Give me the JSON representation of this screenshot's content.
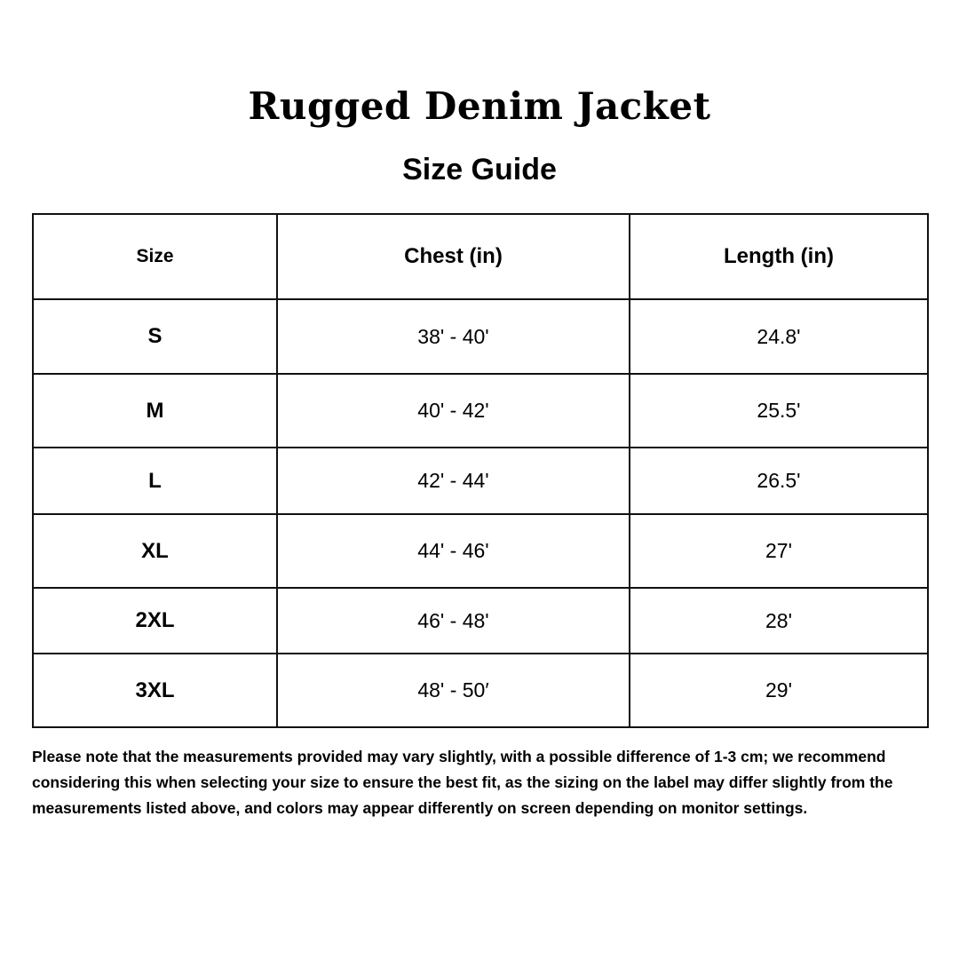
{
  "header": {
    "title": "Rugged Denim Jacket",
    "subtitle": "Size Guide"
  },
  "table": {
    "columns": [
      "Size",
      "Chest (in)",
      "Length (in)"
    ],
    "rows": [
      {
        "size": "S",
        "chest": "38' - 40'",
        "length": "24.8'"
      },
      {
        "size": "M",
        "chest": "40' - 42'",
        "length": "25.5'"
      },
      {
        "size": "L",
        "chest": "42' - 44'",
        "length": "26.5'"
      },
      {
        "size": "XL",
        "chest": "44' - 46'",
        "length": "27'"
      },
      {
        "size": "2XL",
        "chest": "46' - 48'",
        "length": "28'"
      },
      {
        "size": "3XL",
        "chest": "48' - 50′",
        "length": "29'"
      }
    ]
  },
  "note": "Please note that the measurements provided may vary slightly, with a possible difference of 1-3 cm; we recommend considering this when selecting your size to ensure the best fit, as the sizing on the label may differ slightly from the measurements listed above, and colors may appear differently on screen depending on monitor settings."
}
